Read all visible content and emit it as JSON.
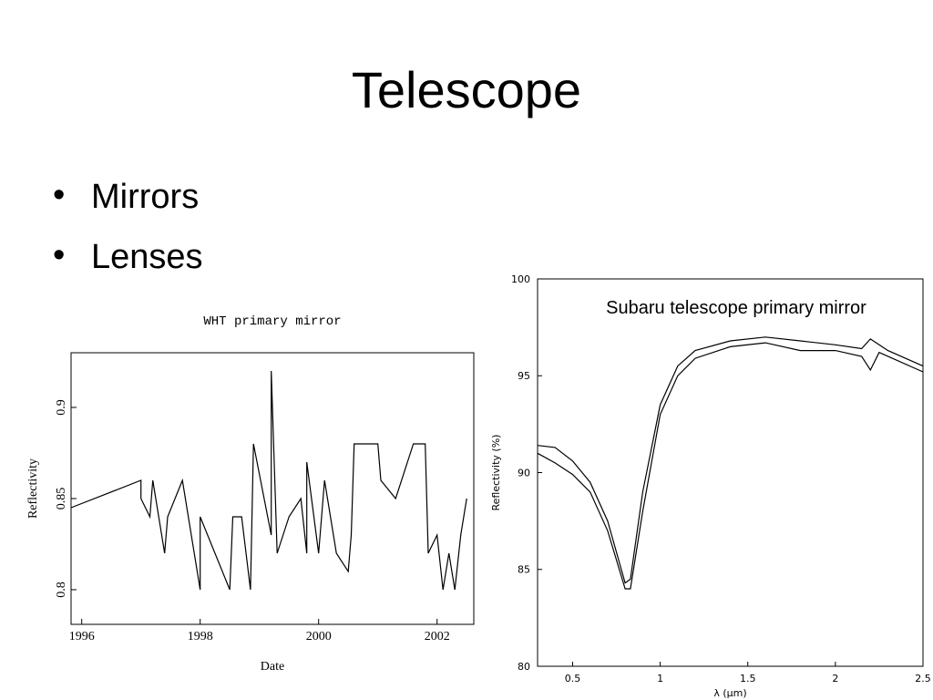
{
  "title": "Telescope",
  "bullets": [
    "Mirrors",
    "Lenses"
  ],
  "chart_data": [
    {
      "type": "line",
      "title": "WHT primary mirror",
      "xlabel": "Date",
      "ylabel": "Reflectivity",
      "xlim": [
        1995.82,
        2002.62
      ],
      "xticks": [
        1996,
        1998,
        2000,
        2002
      ],
      "ylim": [
        0.781,
        0.93
      ],
      "yticks": [
        0.8,
        0.85,
        0.9
      ],
      "series": [
        {
          "color": "#000000",
          "x": [
            1995.82,
            1997.0,
            1997.0,
            1997.15,
            1997.2,
            1997.4,
            1997.45,
            1997.7,
            1998.0,
            1998.0,
            1998.5,
            1998.55,
            1998.7,
            1998.85,
            1998.9,
            1999.2,
            1999.2,
            1999.3,
            1999.5,
            1999.7,
            1999.8,
            1999.8,
            2000.0,
            2000.1,
            2000.3,
            2000.5,
            2000.55,
            2000.6,
            2001.0,
            2001.05,
            2001.3,
            2001.5,
            2001.6,
            2001.8,
            2001.85,
            2002.0,
            2002.1,
            2002.2,
            2002.3,
            2002.4,
            2002.5
          ],
          "values": [
            0.845,
            0.86,
            0.85,
            0.84,
            0.86,
            0.82,
            0.84,
            0.86,
            0.8,
            0.84,
            0.8,
            0.84,
            0.84,
            0.8,
            0.88,
            0.83,
            0.92,
            0.82,
            0.84,
            0.85,
            0.82,
            0.87,
            0.82,
            0.86,
            0.82,
            0.81,
            0.83,
            0.88,
            0.88,
            0.86,
            0.85,
            0.87,
            0.88,
            0.88,
            0.82,
            0.83,
            0.8,
            0.82,
            0.8,
            0.83,
            0.85
          ]
        }
      ]
    },
    {
      "type": "line",
      "annotation": "Subaru telescope primary mirror",
      "xlabel": "λ (μm)",
      "ylabel": "Reflectivity (%)",
      "xlim": [
        0.3,
        2.5
      ],
      "xticks": [
        0.5,
        1,
        1.5,
        2,
        2.5
      ],
      "ylim": [
        80,
        100
      ],
      "yticks": [
        80,
        85,
        90,
        95,
        100
      ],
      "series": [
        {
          "color": "#000000",
          "x": [
            0.3,
            0.4,
            0.5,
            0.6,
            0.7,
            0.8,
            0.83,
            0.9,
            1.0,
            1.1,
            1.2,
            1.4,
            1.6,
            1.8,
            2.0,
            2.15,
            2.2,
            2.3,
            2.5
          ],
          "values": [
            91.4,
            91.3,
            90.6,
            89.5,
            87.5,
            84.3,
            84.5,
            89,
            93.5,
            95.5,
            96.3,
            96.8,
            97.0,
            96.8,
            96.6,
            96.4,
            96.9,
            96.3,
            95.5
          ]
        },
        {
          "color": "#000000",
          "x": [
            0.3,
            0.4,
            0.5,
            0.6,
            0.7,
            0.8,
            0.83,
            0.9,
            1.0,
            1.1,
            1.2,
            1.4,
            1.6,
            1.8,
            2.0,
            2.15,
            2.2,
            2.25,
            2.5
          ],
          "values": [
            91.0,
            90.5,
            89.9,
            89.0,
            87.0,
            84.0,
            84.0,
            88,
            93,
            95.0,
            95.9,
            96.5,
            96.7,
            96.3,
            96.3,
            96.0,
            95.3,
            96.2,
            95.2
          ]
        }
      ]
    }
  ]
}
